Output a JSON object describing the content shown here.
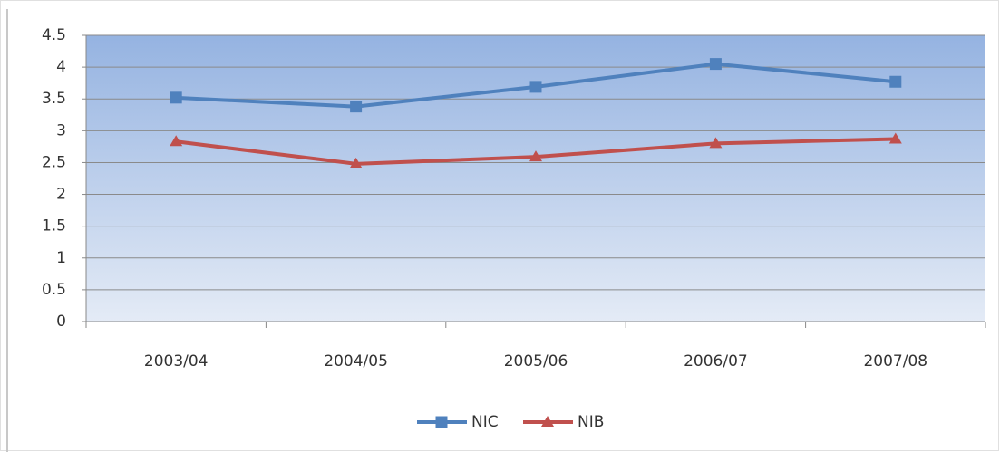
{
  "chart_data": {
    "type": "line",
    "categories": [
      "2003/04",
      "2004/05",
      "2005/06",
      "2006/07",
      "2007/08"
    ],
    "series": [
      {
        "name": "NIC",
        "color": "#4f81bd",
        "marker": "square",
        "values": [
          3.52,
          3.38,
          3.69,
          4.05,
          3.77
        ]
      },
      {
        "name": "NIB",
        "color": "#c0504d",
        "marker": "triangle",
        "values": [
          2.83,
          2.48,
          2.59,
          2.8,
          2.87
        ]
      }
    ],
    "ylim": [
      0,
      4.5
    ],
    "yticks": [
      0,
      0.5,
      1,
      1.5,
      2,
      2.5,
      3,
      3.5,
      4,
      4.5
    ],
    "grid": true,
    "legend": "bottom"
  }
}
